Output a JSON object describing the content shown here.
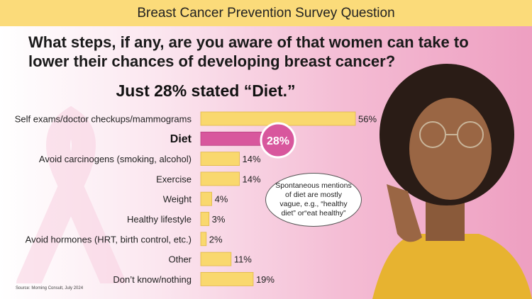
{
  "banner": "Breast Cancer Prevention Survey Question",
  "question": "What steps, if any, are you aware of that women can take to lower their chances of developing breast cancer?",
  "headline": "Just 28% stated “Diet.”",
  "callout": {
    "badge": "28%",
    "text": "Spontaneous mentions of diet are mostly vague, e.g., “healthy diet” or“eat healthy”"
  },
  "source": "Source: Morning Consult, July 2024",
  "colors": {
    "banner": "#fbdb7a",
    "bar": "#f9d86e",
    "highlight": "#d8579d"
  },
  "chart_data": {
    "type": "bar",
    "orientation": "horizontal",
    "categories": [
      "Self exams/doctor checkups/mammograms",
      "Diet",
      "Avoid carcinogens (smoking, alcohol)",
      "Exercise",
      "Weight",
      "Healthy lifestyle",
      "Avoid hormones (HRT, birth control, etc.)",
      "Other",
      "Don’t know/nothing"
    ],
    "values": [
      56,
      28,
      14,
      14,
      4,
      3,
      2,
      11,
      19
    ],
    "value_labels": [
      "56%",
      "",
      "14%",
      "14%",
      "4%",
      "3%",
      "2%",
      "11%",
      "19%"
    ],
    "highlight": "Diet",
    "xlim": [
      0,
      60
    ],
    "grid": false
  }
}
